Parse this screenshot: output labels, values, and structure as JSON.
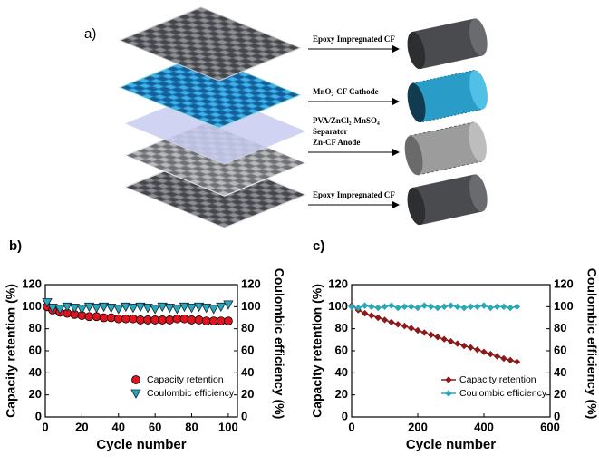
{
  "panel_a": {
    "label": "a)",
    "labels": [
      "Epoxy Impregnated CF",
      "MnO₂-CF Cathode",
      "PVA/ZnCl₂-MnSO₄",
      "Separator",
      "Zn-CF Anode",
      "Epoxy Impregnated CF"
    ]
  },
  "chart_data": [
    {
      "type": "scatter",
      "label": "b)",
      "xlabel": "Cycle number",
      "ylabel": "Capacity retention (%)",
      "y2label": "Coulombic efficiency (%)",
      "xlim": [
        0,
        105
      ],
      "xticks": [
        0,
        20,
        40,
        60,
        80,
        100
      ],
      "ylim": [
        0,
        120
      ],
      "yticks": [
        0,
        20,
        40,
        60,
        80,
        100,
        120
      ],
      "y2lim": [
        0,
        120
      ],
      "y2ticks": [
        0,
        20,
        40,
        60,
        80,
        100,
        120
      ],
      "legend": "lower right",
      "x": [
        1,
        4,
        8,
        12,
        16,
        20,
        24,
        28,
        32,
        36,
        40,
        44,
        48,
        52,
        56,
        60,
        64,
        68,
        72,
        76,
        80,
        84,
        88,
        92,
        96,
        100
      ],
      "series": [
        {
          "name": "Capacity retention",
          "color": "#e0141e",
          "marker": "circle",
          "line": false,
          "values": [
            100,
            97,
            95,
            94,
            93,
            92,
            91,
            91,
            90,
            90,
            89,
            89,
            89,
            88,
            88,
            88,
            88,
            88,
            89,
            89,
            88,
            88,
            87,
            87,
            87,
            87
          ]
        },
        {
          "name": "Coulombic efficiency",
          "color": "#2aa7b8",
          "marker": "triangle",
          "line": false,
          "axis": "y2",
          "values": [
            104,
            99,
            98,
            100,
            99,
            98,
            100,
            99,
            100,
            99,
            98,
            100,
            99,
            100,
            99,
            98,
            100,
            99,
            98,
            100,
            99,
            100,
            99,
            98,
            100,
            102
          ]
        }
      ]
    },
    {
      "type": "scatter",
      "label": "c)",
      "xlabel": "Cycle number",
      "ylabel": "Capacity retention (%)",
      "y2label": "Coulombic efficiency (%)",
      "xlim": [
        0,
        600
      ],
      "xticks": [
        0,
        200,
        400,
        600
      ],
      "ylim": [
        0,
        120
      ],
      "yticks": [
        0,
        20,
        40,
        60,
        80,
        100,
        120
      ],
      "y2lim": [
        0,
        120
      ],
      "y2ticks": [
        0,
        20,
        40,
        60,
        80,
        100,
        120
      ],
      "legend": "lower right",
      "x": [
        0,
        20,
        40,
        60,
        80,
        100,
        120,
        140,
        160,
        180,
        200,
        220,
        240,
        260,
        280,
        300,
        320,
        340,
        360,
        380,
        400,
        420,
        440,
        460,
        480,
        500
      ],
      "series": [
        {
          "name": "Capacity retention",
          "color": "#8b1a1a",
          "marker": "diamond",
          "line": true,
          "values": [
            101,
            97,
            94,
            92,
            90,
            88,
            86,
            84,
            82.5,
            80.5,
            78.5,
            76.5,
            74.5,
            72.5,
            70.5,
            68.5,
            66.5,
            64.5,
            63,
            61,
            59,
            57,
            55,
            53,
            51.5,
            50
          ]
        },
        {
          "name": "Coulombic efficiency",
          "color": "#2aa7b8",
          "marker": "diamond",
          "line": true,
          "axis": "y2",
          "values": [
            100,
            99,
            101,
            100,
            99,
            100,
            101,
            99,
            100,
            100,
            99,
            101,
            100,
            99,
            100,
            101,
            100,
            99,
            100,
            100,
            101,
            99,
            100,
            100,
            99,
            100
          ]
        }
      ]
    }
  ]
}
